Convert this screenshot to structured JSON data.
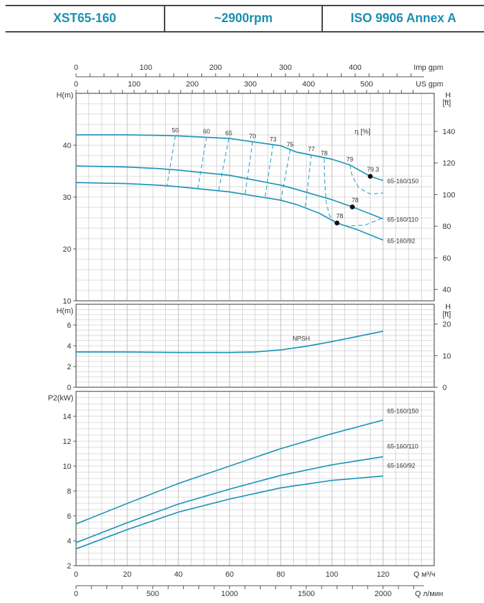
{
  "header": {
    "model": "XST65-160",
    "speed": "~2900rpm",
    "standard": "ISO 9906   Annex A"
  },
  "colors": {
    "curve": "#1e96b8",
    "iso": "#3aa8c8",
    "header_text": "#1b8fb0",
    "grid": "#bdbdbd"
  },
  "chart_data": [
    {
      "type": "line",
      "name_axis": "head",
      "ylabel": "H(m)",
      "ylabel_right": [
        "H",
        "[ft]"
      ],
      "ylim": [
        10,
        50
      ],
      "yticks": [
        10,
        20,
        30,
        40
      ],
      "yticks_right_ft": [
        40,
        60,
        80,
        100,
        120,
        140
      ],
      "xlim": [
        0,
        140
      ],
      "grid": true,
      "efficiency_label": "η [%]",
      "series": [
        {
          "name": "65-160/150",
          "x": [
            0,
            20,
            32,
            40,
            60,
            80,
            86,
            100,
            107,
            115,
            120
          ],
          "y": [
            42,
            42,
            41.9,
            41.8,
            41.3,
            39.9,
            38.7,
            37.3,
            36.2,
            34.0,
            33.2
          ]
        },
        {
          "name": "65-160/110",
          "x": [
            0,
            20,
            32,
            40,
            60,
            80,
            86,
            100,
            108,
            120
          ],
          "y": [
            36,
            35.8,
            35.5,
            35.2,
            34.2,
            32.3,
            31.5,
            29.5,
            28.1,
            25.8
          ]
        },
        {
          "name": "65-160/92",
          "x": [
            0,
            20,
            32,
            40,
            60,
            80,
            86,
            95,
            102,
            110,
            120
          ],
          "y": [
            32.8,
            32.6,
            32.3,
            32.0,
            31.0,
            29.4,
            28.6,
            26.9,
            25.0,
            23.7,
            21.7
          ]
        }
      ],
      "best_points": [
        {
          "label": "79.3",
          "x": 115,
          "y": 34.0
        },
        {
          "label": "78",
          "x": 108,
          "y": 28.1
        },
        {
          "label": "78",
          "x": 102,
          "y": 25.0
        }
      ],
      "efficiency_lines": [
        {
          "label": "50",
          "points": [
            [
              38.8,
              41.8
            ],
            [
              35.5,
              32.1
            ]
          ]
        },
        {
          "label": "60",
          "points": [
            [
              51,
              41.6
            ],
            [
              47.6,
              31.6
            ]
          ]
        },
        {
          "label": "65",
          "points": [
            [
              59.7,
              41.3
            ],
            [
              55.7,
              31.2
            ]
          ]
        },
        {
          "label": "70",
          "points": [
            [
              69,
              40.7
            ],
            [
              66,
              30.3
            ]
          ]
        },
        {
          "label": "73",
          "points": [
            [
              77,
              40.1
            ],
            [
              73.8,
              29.7
            ]
          ]
        },
        {
          "label": "75",
          "points": [
            [
              83.7,
              39.1
            ],
            [
              80,
              29.2
            ]
          ]
        },
        {
          "label": "77",
          "points": [
            [
              92,
              38.2
            ],
            [
              89.6,
              28.1
            ]
          ]
        },
        {
          "label": "78",
          "points": [
            [
              97,
              37.4
            ],
            [
              97.2,
              33
            ],
            [
              97.8,
              29
            ],
            [
              99,
              26.5
            ],
            [
              101,
              25.2
            ],
            [
              106,
              24.4
            ],
            [
              113,
              24.6
            ],
            [
              119.5,
              25.9
            ]
          ]
        },
        {
          "label": "79",
          "points": [
            [
              107,
              36.2
            ],
            [
              108,
              34
            ],
            [
              110.5,
              31.8
            ],
            [
              115,
              30.6
            ],
            [
              120,
              30.8
            ]
          ]
        }
      ]
    },
    {
      "type": "line",
      "name_axis": "npsh",
      "ylabel": "H(m)",
      "ylabel_right": [
        "H",
        "[ft]"
      ],
      "ylim": [
        0,
        8
      ],
      "yticks": [
        0,
        2,
        4,
        6
      ],
      "yticks_right_ft": [
        0,
        10,
        20
      ],
      "xlim": [
        0,
        140
      ],
      "series": [
        {
          "name": "NPSH",
          "x": [
            0,
            20,
            40,
            60,
            70,
            80,
            90,
            100,
            110,
            120
          ],
          "y": [
            3.4,
            3.4,
            3.35,
            3.35,
            3.4,
            3.6,
            3.95,
            4.4,
            4.9,
            5.4
          ]
        }
      ]
    },
    {
      "type": "line",
      "name_axis": "power",
      "ylabel": "P2(kW)",
      "ylim": [
        2,
        16
      ],
      "yticks": [
        2,
        4,
        6,
        8,
        10,
        12,
        14
      ],
      "xlim": [
        0,
        140
      ],
      "series": [
        {
          "name": "65-160/150",
          "x": [
            0,
            20,
            40,
            60,
            80,
            100,
            120
          ],
          "y": [
            5.35,
            7.0,
            8.6,
            10.0,
            11.4,
            12.6,
            13.7
          ]
        },
        {
          "name": "65-160/110",
          "x": [
            0,
            20,
            40,
            60,
            80,
            100,
            120
          ],
          "y": [
            3.85,
            5.45,
            6.95,
            8.15,
            9.25,
            10.1,
            10.75
          ]
        },
        {
          "name": "65-160/92",
          "x": [
            0,
            20,
            40,
            60,
            80,
            100,
            120
          ],
          "y": [
            3.35,
            4.9,
            6.3,
            7.35,
            8.25,
            8.85,
            9.2
          ]
        }
      ]
    }
  ],
  "axes": {
    "imp_gpm": {
      "label": "Imp gpm",
      "ticks": [
        0,
        100,
        200,
        300,
        400
      ]
    },
    "us_gpm": {
      "label": "US gpm",
      "ticks": [
        0,
        100,
        200,
        300,
        400,
        500
      ]
    },
    "m3h": {
      "label": "Q  м³/ч",
      "ticks": [
        0,
        20,
        40,
        60,
        80,
        100,
        120
      ]
    },
    "lmin": {
      "label": "Q  л/мин",
      "ticks": [
        0,
        500,
        1000,
        1500,
        2000
      ]
    }
  }
}
